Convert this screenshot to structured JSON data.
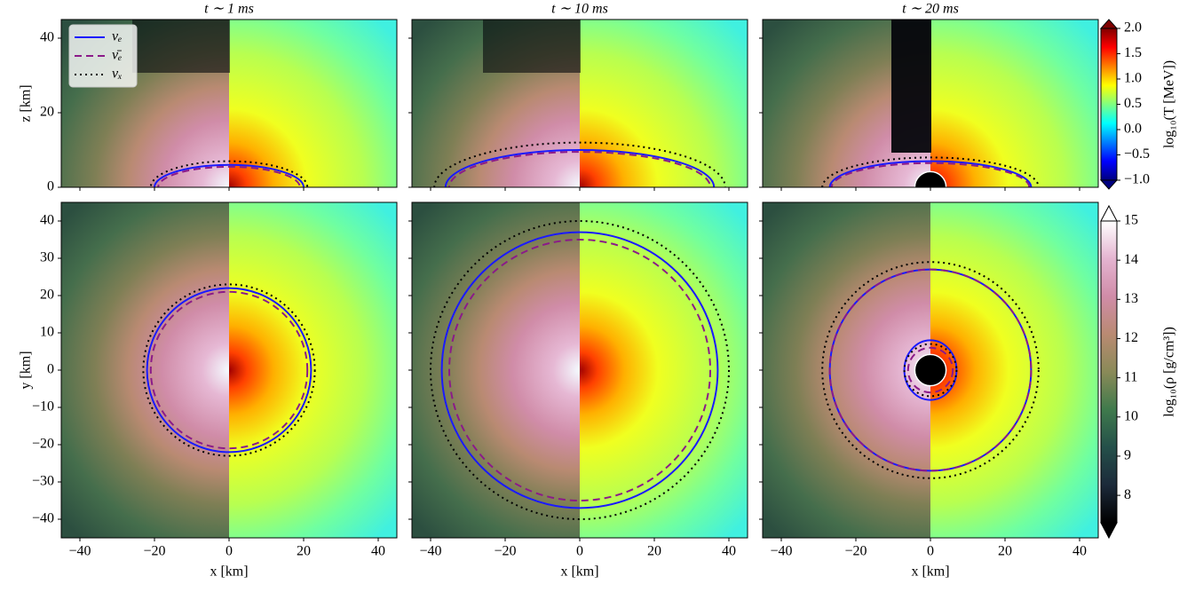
{
  "chart_data": {
    "type": "heatmap",
    "columns": [
      {
        "title": "t ∼ 1 ms"
      },
      {
        "title": "t ∼ 10 ms"
      },
      {
        "title": "t ∼ 20 ms"
      }
    ],
    "rows": [
      {
        "ylabel": "z [km]",
        "ylim": [
          0,
          45
        ],
        "yticks": [
          0,
          20,
          40
        ]
      },
      {
        "ylabel": "y [km]",
        "ylim": [
          -45,
          45
        ],
        "yticks": [
          {
            "value": -40,
            "label": "−40"
          },
          {
            "value": -30,
            "label": "−30"
          },
          {
            "value": -20,
            "label": "−20"
          },
          {
            "value": -10,
            "label": "−10"
          },
          0,
          10,
          20,
          30,
          40
        ]
      }
    ],
    "xlabel": "x [km]",
    "xlim": [
      -45,
      45
    ],
    "xticks": [
      {
        "value": -40,
        "label": "−40"
      },
      {
        "value": -20,
        "label": "−20"
      },
      0,
      20,
      40
    ],
    "legend": {
      "corner": "upper left",
      "entries": [
        {
          "name": "νₑ",
          "color": "#1a1aff",
          "style": "solid"
        },
        {
          "name": "ν̄ₑ",
          "color": "#8b1a89",
          "style": "dashed"
        },
        {
          "name": "νₓ",
          "color": "#000000",
          "style": "dotted"
        }
      ]
    },
    "colorbars": [
      {
        "label": "log₁₀(T [MeV])",
        "lim": [
          -1,
          2
        ],
        "ticks": [
          {
            "value": -1,
            "label": "−1.0"
          },
          {
            "value": -0.5,
            "label": "−0.5"
          },
          {
            "value": 0,
            "label": "0.0"
          },
          0.5,
          {
            "value": 1,
            "label": "1.0"
          },
          1.5,
          {
            "value": 2,
            "label": "2.0"
          }
        ],
        "colors": [
          "#00007f",
          "#0000ff",
          "#0080ff",
          "#00ffff",
          "#80ff80",
          "#ffff00",
          "#ff8000",
          "#ff0000",
          "#7f0000"
        ]
      },
      {
        "label": "log₁₀(ρ [g/cm³])",
        "lim": [
          7.3,
          15
        ],
        "ticks": [
          8,
          9,
          10,
          11,
          12,
          13,
          14,
          15
        ],
        "colors": [
          "#000000",
          "#1c2a3a",
          "#24504a",
          "#3f7a4c",
          "#8a8a58",
          "#b98a72",
          "#d08ca8",
          "#e4b4d0",
          "#ffffff"
        ]
      }
    ]
  }
}
